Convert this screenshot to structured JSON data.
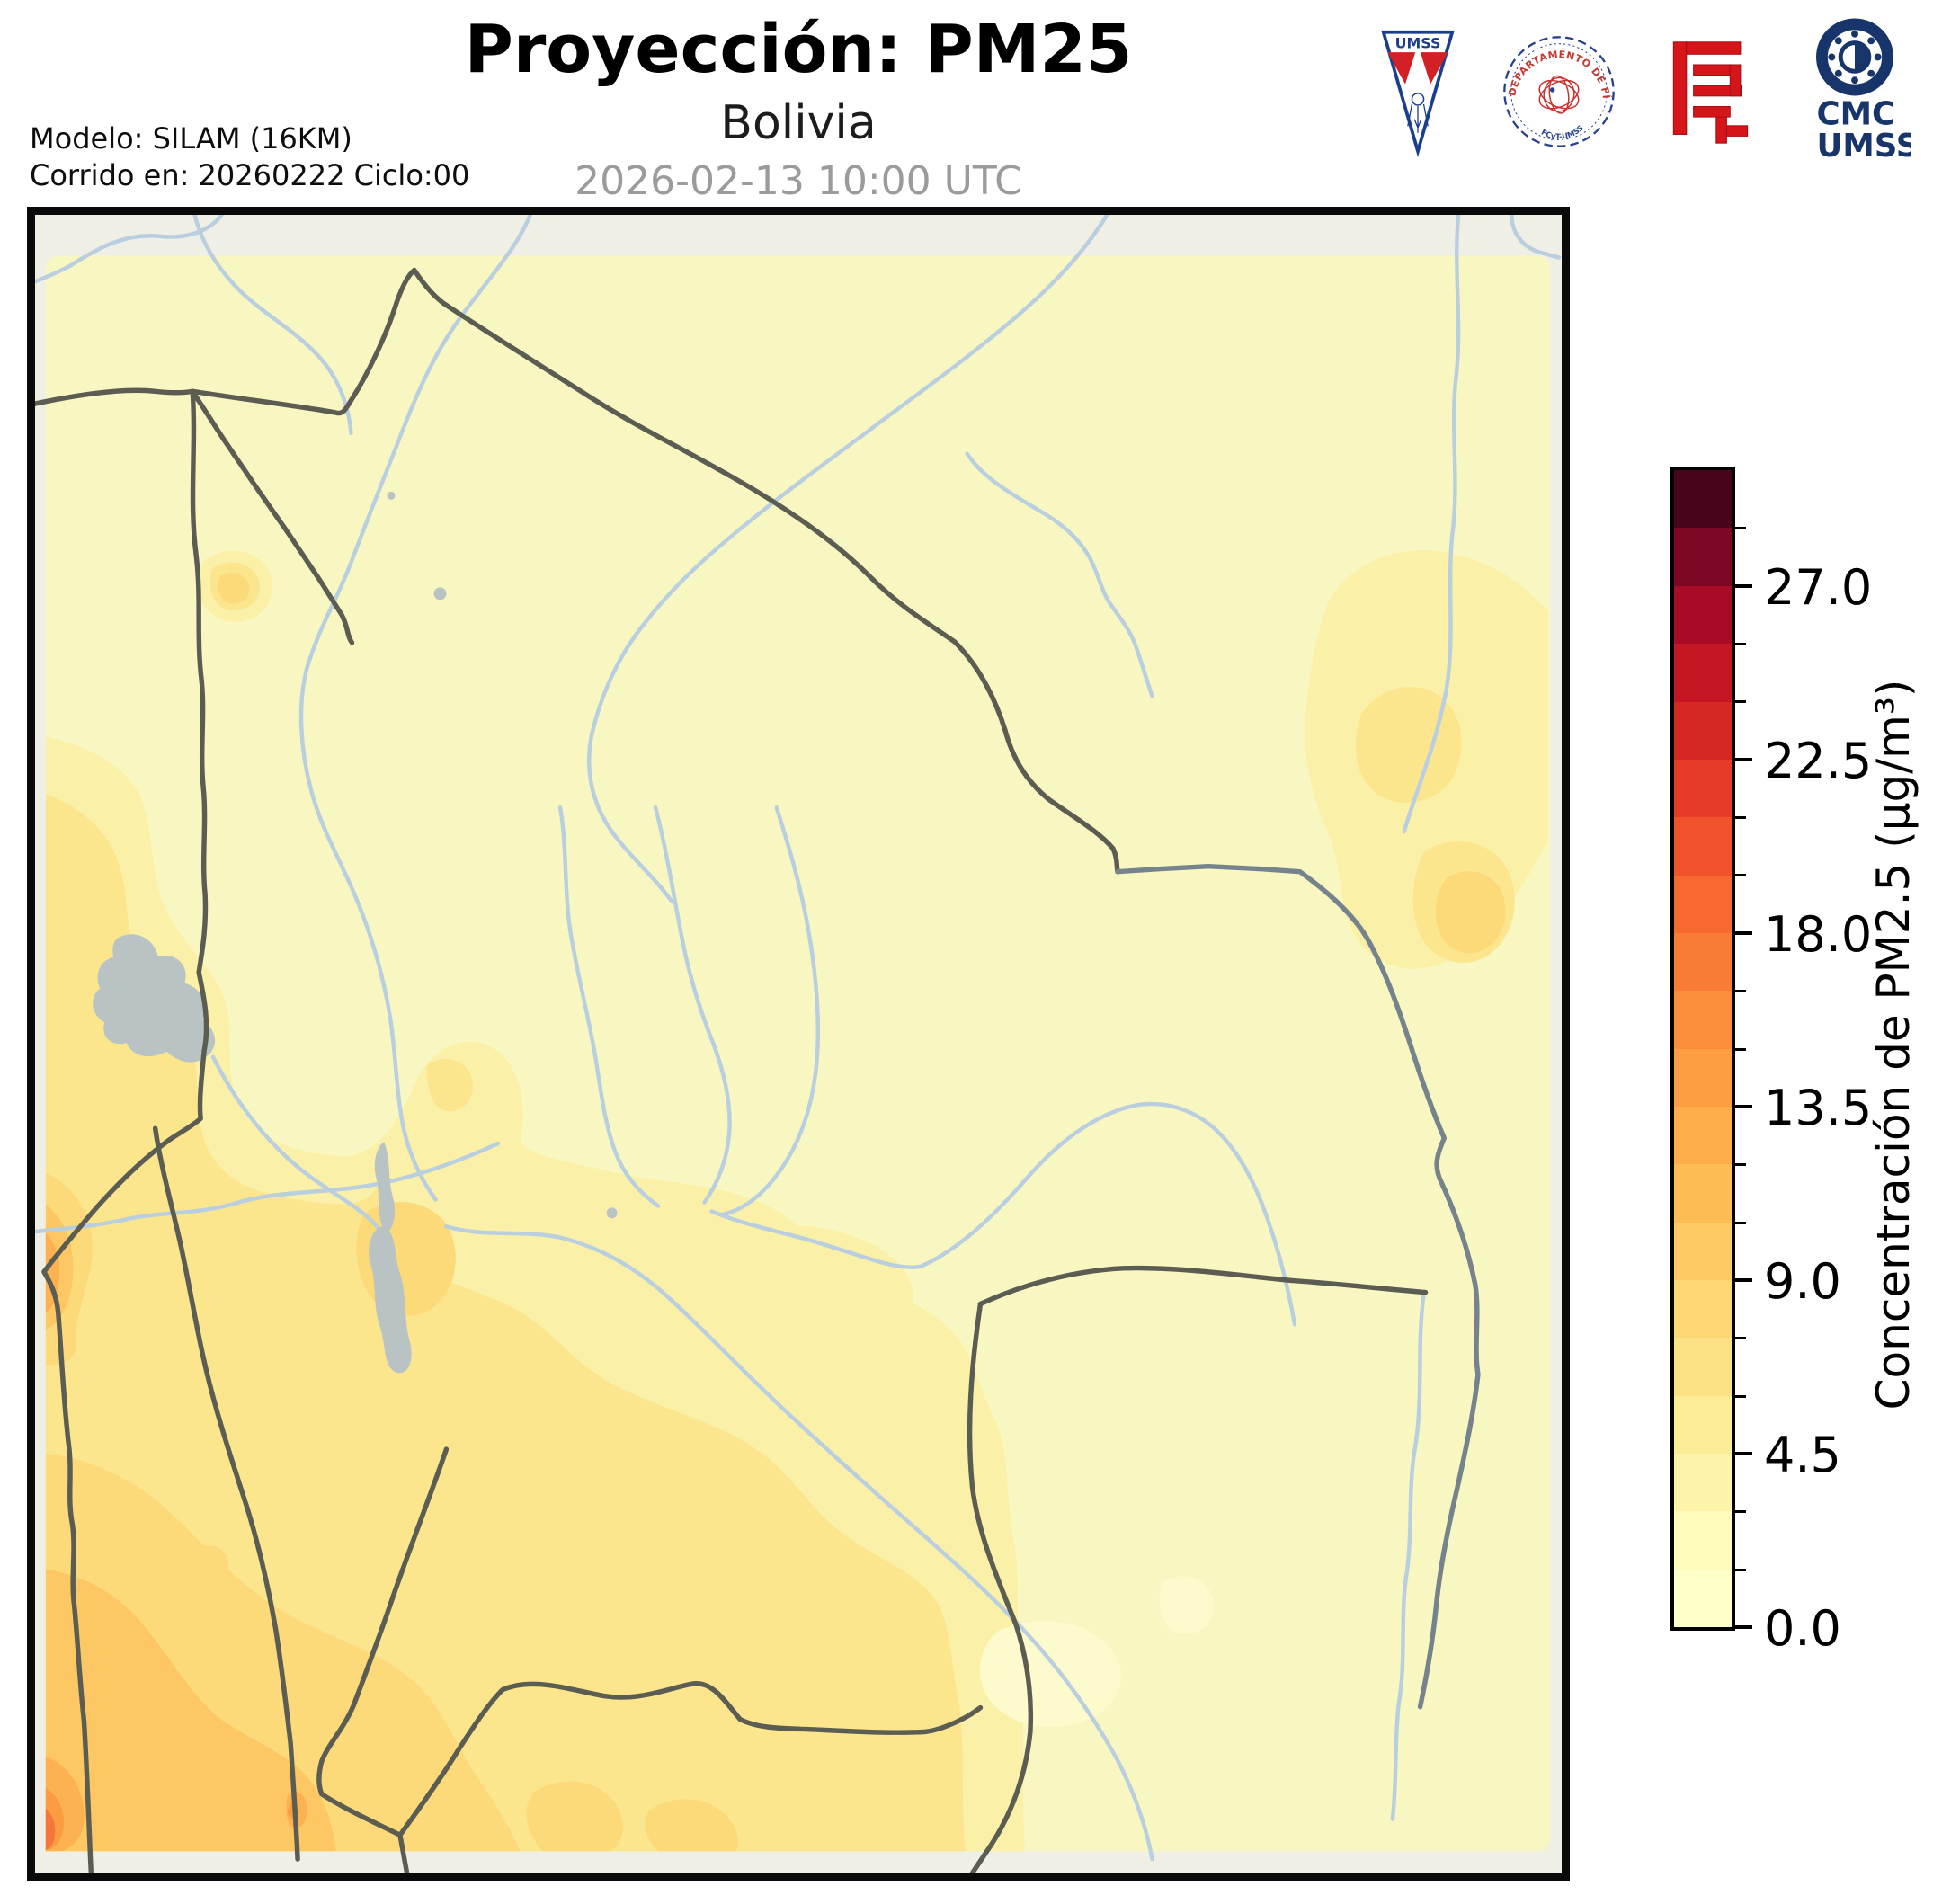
{
  "header": {
    "title": "Proyección: PM25",
    "subtitle": "Bolivia",
    "timestamp": "2026-02-13 10:00 UTC",
    "model_line1": "Modelo: SILAM (16KM)",
    "model_line2": "Corrido en: 20260222 Ciclo:00"
  },
  "logos": {
    "umss_pennant_label": "UMSS",
    "fisica_seal_top_text": "DEPARTAMENTO DE FÍSICA",
    "fisica_seal_bottom_text": "FCyT-UMSS",
    "cmc_line1": "CMC",
    "cmc_line2": "UMSS"
  },
  "colorbar": {
    "label": "Concentración de PM2.5 (µg/m³)",
    "min": 0,
    "max": 30,
    "major_ticks": [
      27.0,
      22.5,
      18.0,
      13.5,
      9.0,
      4.5,
      0.0
    ],
    "minor_tick_step": 1.5,
    "band_colors": [
      "#ffffc9",
      "#fefbbb",
      "#fdf4a9",
      "#fcec96",
      "#fce284",
      "#fdd773",
      "#fdca64",
      "#febc55",
      "#fdad4a",
      "#fc9e41",
      "#fb8e3b",
      "#f97c36",
      "#f66931",
      "#f0522c",
      "#e63b27",
      "#d62823",
      "#c51624",
      "#a80b26",
      "#7d0723",
      "#47051c"
    ]
  },
  "chart_data": {
    "type": "contour-map",
    "title": "Proyección: PM25 — Bolivia",
    "variable": "Concentración de PM2.5 (µg/m³)",
    "scale_min": 0.0,
    "scale_max": 30.0,
    "scale_ticks": [
      0.0,
      4.5,
      9.0,
      13.5,
      18.0,
      22.5,
      27.0
    ],
    "contour_interval": 1.5,
    "observed_value_range_on_map": [
      0,
      15
    ]
  },
  "map": {
    "colors": {
      "outside_domain": "#f0efe6",
      "background": "#f9f7c1",
      "river": "#b9cfdf",
      "boundary": "#5c5d52",
      "boundary_ne": "#75838c",
      "lake": "#b9c3c4",
      "frame": "#000000",
      "level2": "#fbf0a7",
      "level3": "#fbe68d",
      "level4": "#fcd979",
      "level5": "#fdc763",
      "level6": "#fdb251",
      "level7": "#fc9c42",
      "level8": "#f4763a",
      "pale_patch": "#fdfbce"
    }
  }
}
